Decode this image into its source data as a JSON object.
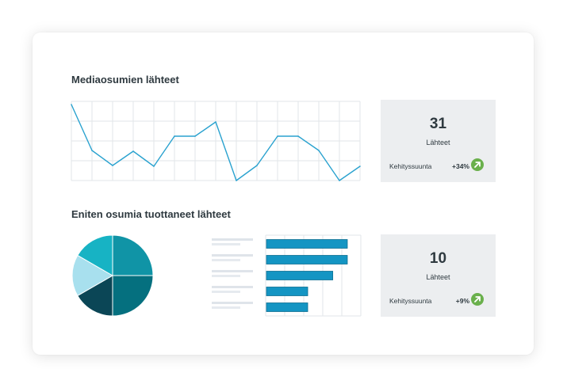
{
  "colors": {
    "line": "#2aa2cf",
    "bar": "#1495c3",
    "trend_up": "#6ab04c",
    "pie": [
      "#1094a6",
      "#05707f",
      "#0b4656",
      "#a8e0ee",
      "#17b3c4"
    ]
  },
  "sections": {
    "media_sources_title": "Mediaosumien lähteet",
    "top_sources_title": "Eniten osumia tuottaneet lähteet"
  },
  "stats": [
    {
      "value": "31",
      "label": "Lähteet",
      "trend_label": "Kehityssuunta",
      "trend_value": "+34%",
      "trend_icon": "arrow-up-right-icon"
    },
    {
      "value": "10",
      "label": "Lähteet",
      "trend_label": "Kehityssuunta",
      "trend_value": "+9%",
      "trend_icon": "arrow-up-right-icon"
    }
  ],
  "chart_data": [
    {
      "type": "line",
      "x": [
        0,
        1,
        2,
        3,
        4,
        5,
        6,
        7,
        8,
        9,
        10,
        11,
        12,
        13,
        14
      ],
      "values": [
        96,
        38,
        19,
        37,
        18,
        56,
        56,
        74,
        0,
        19,
        56,
        56,
        38,
        0,
        18
      ],
      "ylim": [
        0,
        100
      ],
      "grid": true
    },
    {
      "type": "pie",
      "values": [
        25,
        25,
        16.67,
        16.67,
        16.66
      ]
    },
    {
      "type": "bar",
      "orientation": "horizontal",
      "values": [
        100,
        100,
        82,
        51,
        51
      ],
      "xlim": [
        0,
        125
      ],
      "grid": true
    }
  ]
}
